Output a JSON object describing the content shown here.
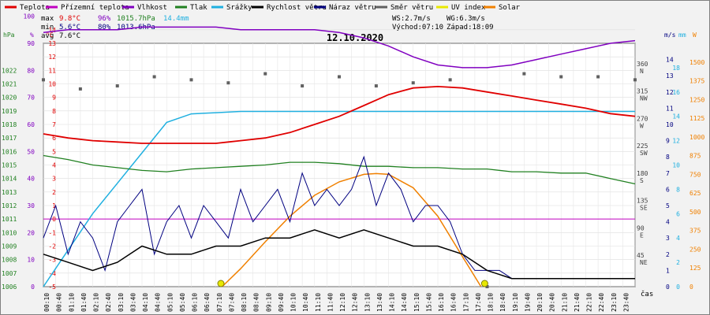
{
  "chart_data": {
    "type": "line",
    "title": "12.10.2020",
    "xlabel": "čas",
    "legend": [
      {
        "name": "Teplota",
        "color": "#e00000"
      },
      {
        "name": "Přízemní teplota",
        "color": "#c000c0"
      },
      {
        "name": "Vlhkost",
        "color": "#8000c0"
      },
      {
        "name": "Tlak",
        "color": "#208020"
      },
      {
        "name": "Srážky",
        "color": "#20b0e0"
      },
      {
        "name": "Rychlost větru",
        "color": "#000000"
      },
      {
        "name": "Náraz větru",
        "color": "#000080"
      },
      {
        "name": "Směr větru",
        "color": "#606060"
      },
      {
        "name": "UV index",
        "color": "#e8e800"
      },
      {
        "name": "Solar",
        "color": "#f08000"
      }
    ],
    "stats": {
      "max": {
        "label": "max",
        "temp": "9.8°C",
        "hum": "96%",
        "press": "1015.7hPa",
        "rain": "14.4mm"
      },
      "min": {
        "label": "min",
        "temp": "5.6°C",
        "hum": "80%",
        "press": "1013.6hPa"
      },
      "avg": {
        "label": "avg",
        "temp": "7.6°C"
      }
    },
    "wind_info": {
      "ws": "WS:2.7m/s",
      "wg": "WG:6.3m/s",
      "sunrise": "Východ:07:10",
      "sunset": "Západ:18:09"
    },
    "axes": {
      "hpa": {
        "unit": "hPa",
        "ticks": [
          "1022",
          "1021",
          "1020",
          "1019",
          "1018",
          "1017",
          "1016",
          "1015",
          "1014",
          "1013",
          "1012",
          "1011",
          "1010",
          "1009",
          "1008",
          "1007",
          "1006"
        ]
      },
      "pct": {
        "unit": "%",
        "ticks": [
          "100",
          "90",
          "80",
          "70",
          "60",
          "50",
          "40",
          "30",
          "20",
          "10",
          "0"
        ]
      },
      "temp": {
        "unit": "°C",
        "ticks": [
          "14",
          "13",
          "12",
          "11",
          "10",
          "9",
          "8",
          "7",
          "6",
          "5",
          "4",
          "3",
          "2",
          "1",
          "0",
          "-1",
          "-2",
          "-3",
          "-4",
          "-5"
        ]
      },
      "dir": {
        "ticks": [
          "360",
          "315",
          "270",
          "225",
          "180",
          "135",
          "90",
          "45"
        ],
        "labels": [
          "N",
          "NW",
          "W",
          "SW",
          "S",
          "SE",
          "E",
          "NE"
        ]
      },
      "ms": {
        "unit": "m/s",
        "ticks": [
          "14",
          "13",
          "12",
          "11",
          "10",
          "9",
          "8",
          "7",
          "6",
          "5",
          "4",
          "3",
          "2",
          "1",
          "0"
        ]
      },
      "mm": {
        "unit": "mm",
        "ticks": [
          "18",
          "16",
          "14",
          "12",
          "10",
          "8",
          "6",
          "4",
          "2",
          "0"
        ]
      },
      "w": {
        "unit": "W",
        "ticks": [
          "1500",
          "1375",
          "1250",
          "1125",
          "1000",
          "875",
          "750",
          "625",
          "500",
          "375",
          "250",
          "125",
          "0"
        ]
      }
    },
    "x_ticks": [
      "00:10",
      "00:40",
      "01:10",
      "01:40",
      "02:10",
      "02:40",
      "03:10",
      "03:40",
      "04:10",
      "04:40",
      "05:10",
      "05:40",
      "06:10",
      "06:40",
      "07:10",
      "07:40",
      "08:10",
      "08:40",
      "09:10",
      "09:40",
      "10:10",
      "10:40",
      "11:10",
      "11:40",
      "12:10",
      "12:40",
      "13:10",
      "13:40",
      "14:10",
      "14:40",
      "15:10",
      "15:40",
      "16:10",
      "16:40",
      "17:10",
      "17:40",
      "18:10",
      "18:40",
      "19:10",
      "19:40",
      "20:10",
      "20:40",
      "21:10",
      "21:40",
      "22:10",
      "22:40",
      "23:10",
      "23:40"
    ],
    "series": [
      {
        "name": "Teplota",
        "unit": "°C",
        "x": [
          0,
          2,
          4,
          6,
          8,
          10,
          12,
          14,
          15,
          16,
          18,
          20,
          22,
          24,
          26,
          28,
          30,
          32,
          34,
          36,
          38,
          40,
          42,
          44,
          46,
          48
        ],
        "values": [
          6.3,
          6.0,
          5.8,
          5.7,
          5.6,
          5.6,
          5.6,
          5.6,
          5.7,
          5.8,
          6.0,
          6.4,
          7.0,
          7.6,
          8.4,
          9.2,
          9.7,
          9.8,
          9.7,
          9.4,
          9.1,
          8.8,
          8.5,
          8.2,
          7.8,
          7.6
        ]
      },
      {
        "name": "Vlhkost",
        "unit": "%",
        "x": [
          0,
          2,
          4,
          6,
          8,
          10,
          12,
          14,
          16,
          18,
          20,
          22,
          24,
          26,
          28,
          30,
          32,
          34,
          36,
          38,
          40,
          42,
          44,
          46,
          48
        ],
        "values": [
          94,
          95,
          95,
          95,
          96,
          96,
          96,
          96,
          95,
          95,
          95,
          95,
          94,
          92,
          89,
          85,
          82,
          81,
          81,
          82,
          84,
          86,
          88,
          90,
          91
        ]
      },
      {
        "name": "Tlak",
        "unit": "hPa",
        "x": [
          0,
          2,
          4,
          6,
          8,
          10,
          12,
          14,
          16,
          18,
          20,
          22,
          24,
          26,
          28,
          30,
          32,
          34,
          36,
          38,
          40,
          42,
          44,
          46,
          48
        ],
        "values": [
          1015.7,
          1015.4,
          1015.0,
          1014.8,
          1014.6,
          1014.5,
          1014.7,
          1014.8,
          1014.9,
          1015.0,
          1015.2,
          1015.2,
          1015.1,
          1014.9,
          1014.9,
          1014.8,
          1014.8,
          1014.7,
          1014.7,
          1014.5,
          1014.5,
          1014.4,
          1014.4,
          1014.0,
          1013.6
        ]
      },
      {
        "name": "Srážky",
        "unit": "mm",
        "x": [
          0,
          2,
          4,
          6,
          8,
          10,
          12,
          14,
          16,
          48
        ],
        "values": [
          0,
          3.0,
          6.0,
          8.5,
          11.0,
          13.5,
          14.2,
          14.3,
          14.4,
          14.4
        ]
      },
      {
        "name": "Rychlost větru",
        "unit": "m/s",
        "x": [
          0,
          2,
          4,
          6,
          8,
          10,
          12,
          14,
          16,
          18,
          20,
          22,
          24,
          26,
          28,
          30,
          32,
          34,
          36,
          38,
          40,
          42,
          44,
          46,
          48
        ],
        "values": [
          2.0,
          1.5,
          1.0,
          1.5,
          2.5,
          2.0,
          2.0,
          2.5,
          2.5,
          3.0,
          3.0,
          3.5,
          3.0,
          3.5,
          3.0,
          2.5,
          2.5,
          2.0,
          1.0,
          0.5,
          0.5,
          0.5,
          0.5,
          0.5,
          0.5
        ]
      },
      {
        "name": "Náraz větru",
        "unit": "m/s",
        "x": [
          0,
          1,
          2,
          3,
          4,
          5,
          6,
          7,
          8,
          9,
          10,
          11,
          12,
          13,
          14,
          15,
          16,
          17,
          18,
          19,
          20,
          21,
          22,
          23,
          24,
          25,
          26,
          27,
          28,
          29,
          30,
          31,
          32,
          33,
          34,
          35,
          36,
          37,
          38
        ],
        "values": [
          3,
          5,
          2,
          4,
          3,
          1,
          4,
          5,
          6,
          2,
          4,
          5,
          3,
          5,
          4,
          3,
          6,
          4,
          5,
          6,
          4,
          7,
          5,
          6,
          5,
          6,
          8,
          5,
          7,
          6,
          4,
          5,
          5,
          4,
          2,
          1,
          1,
          1,
          0.5
        ]
      },
      {
        "name": "Solar",
        "unit": "W",
        "x": [
          14.5,
          16,
          18,
          20,
          22,
          24,
          26,
          27,
          28,
          30,
          32,
          34,
          35.5
        ],
        "values": [
          0,
          120,
          300,
          470,
          610,
          700,
          750,
          755,
          750,
          660,
          470,
          200,
          0
        ]
      }
    ],
    "wind_direction": {
      "unit": "°",
      "x": [
        0,
        3,
        6,
        9,
        12,
        15,
        18,
        21,
        24,
        27,
        30,
        33,
        36,
        39,
        42,
        45,
        48
      ],
      "values": [
        340,
        325,
        330,
        345,
        340,
        335,
        350,
        330,
        345,
        330,
        335,
        340,
        0,
        350,
        345,
        345,
        340
      ]
    },
    "uv_index": {
      "x": [
        14.4,
        35.8
      ],
      "values": [
        0,
        0
      ]
    }
  }
}
